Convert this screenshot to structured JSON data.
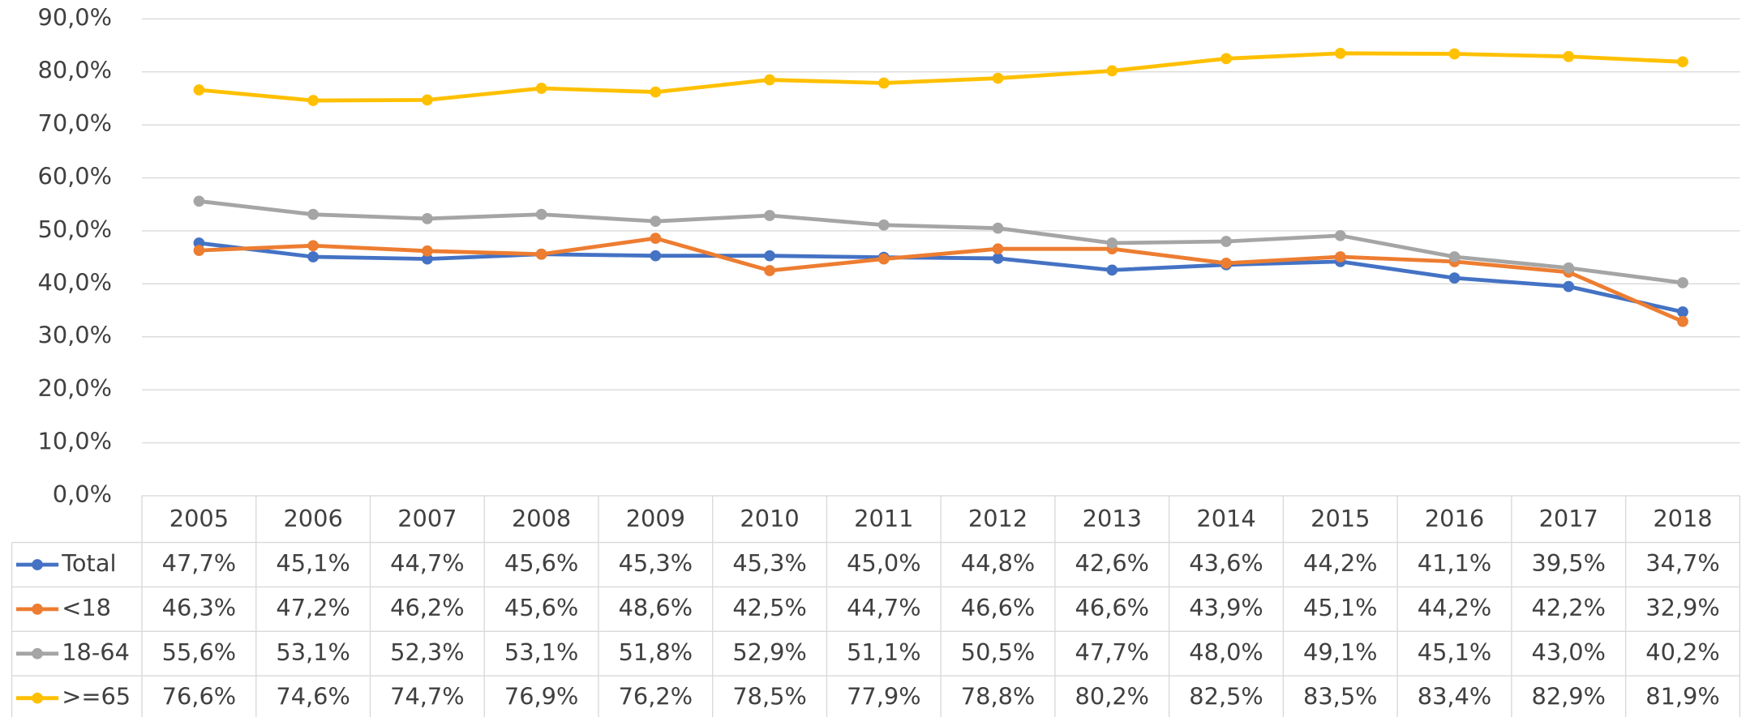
{
  "chart_data": {
    "type": "line",
    "categories": [
      "2005",
      "2006",
      "2007",
      "2008",
      "2009",
      "2010",
      "2011",
      "2012",
      "2013",
      "2014",
      "2015",
      "2016",
      "2017",
      "2018"
    ],
    "series": [
      {
        "name": "Total",
        "color": "#4472c4",
        "values": [
          47.7,
          45.1,
          44.7,
          45.6,
          45.3,
          45.3,
          45.0,
          44.8,
          42.6,
          43.6,
          44.2,
          41.1,
          39.5,
          34.7
        ],
        "value_labels": [
          "47,7%",
          "45,1%",
          "44,7%",
          "45,6%",
          "45,3%",
          "45,3%",
          "45,0%",
          "44,8%",
          "42,6%",
          "43,6%",
          "44,2%",
          "41,1%",
          "39,5%",
          "34,7%"
        ]
      },
      {
        "name": "<18",
        "color": "#ed7d31",
        "values": [
          46.3,
          47.2,
          46.2,
          45.6,
          48.6,
          42.5,
          44.7,
          46.6,
          46.6,
          43.9,
          45.1,
          44.2,
          42.2,
          32.9
        ],
        "value_labels": [
          "46,3%",
          "47,2%",
          "46,2%",
          "45,6%",
          "48,6%",
          "42,5%",
          "44,7%",
          "46,6%",
          "46,6%",
          "43,9%",
          "45,1%",
          "44,2%",
          "42,2%",
          "32,9%"
        ]
      },
      {
        "name": "18-64",
        "color": "#a5a5a5",
        "values": [
          55.6,
          53.1,
          52.3,
          53.1,
          51.8,
          52.9,
          51.1,
          50.5,
          47.7,
          48.0,
          49.1,
          45.1,
          43.0,
          40.2
        ],
        "value_labels": [
          "55,6%",
          "53,1%",
          "52,3%",
          "53,1%",
          "51,8%",
          "52,9%",
          "51,1%",
          "50,5%",
          "47,7%",
          "48,0%",
          "49,1%",
          "45,1%",
          "43,0%",
          "40,2%"
        ]
      },
      {
        "name": ">=65",
        "color": "#ffc000",
        "values": [
          76.6,
          74.6,
          74.7,
          76.9,
          76.2,
          78.5,
          77.9,
          78.8,
          80.2,
          82.5,
          83.5,
          83.4,
          82.9,
          81.9
        ],
        "value_labels": [
          "76,6%",
          "74,6%",
          "74,7%",
          "76,9%",
          "76,2%",
          "78,5%",
          "77,9%",
          "78,8%",
          "80,2%",
          "82,5%",
          "83,5%",
          "83,4%",
          "82,9%",
          "81,9%"
        ]
      }
    ],
    "ylim": [
      0,
      90
    ],
    "yticks": [
      {
        "value": 0,
        "label": "0,0%"
      },
      {
        "value": 10,
        "label": "10,0%"
      },
      {
        "value": 20,
        "label": "20,0%"
      },
      {
        "value": 30,
        "label": "30,0%"
      },
      {
        "value": 40,
        "label": "40,0%"
      },
      {
        "value": 50,
        "label": "50,0%"
      },
      {
        "value": 60,
        "label": "60,0%"
      },
      {
        "value": 70,
        "label": "70,0%"
      },
      {
        "value": 80,
        "label": "80,0%"
      },
      {
        "value": 90,
        "label": "90,0%"
      }
    ],
    "grid": true,
    "data_table": true
  }
}
